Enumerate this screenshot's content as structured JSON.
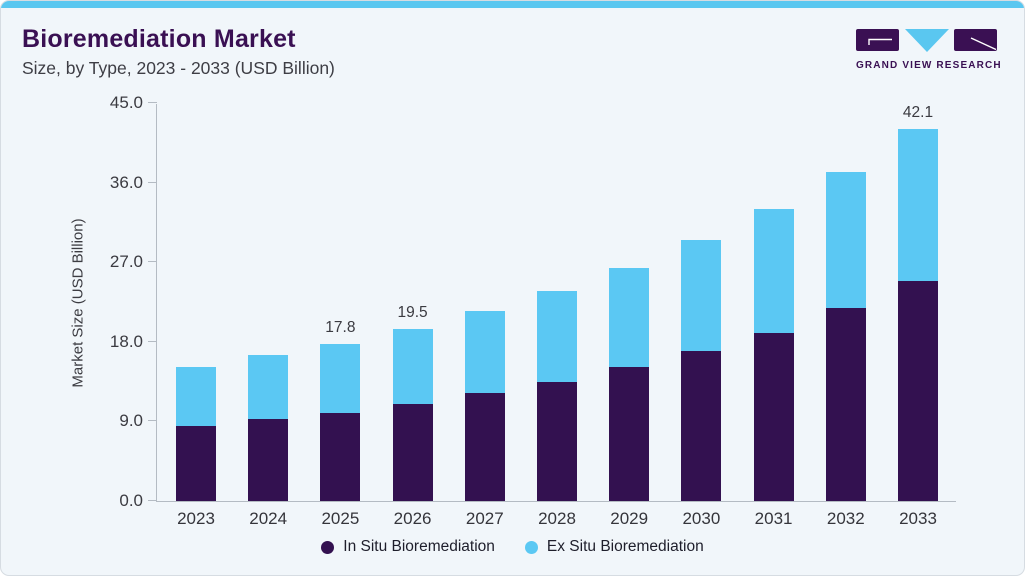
{
  "header": {
    "title": "Bioremediation Market",
    "subtitle": "Size, by Type, 2023 - 2033 (USD Billion)"
  },
  "logo": {
    "text": "GRAND VIEW RESEARCH",
    "brand_purple": "#3a1053",
    "brand_blue": "#5ac7f0"
  },
  "chart_data": {
    "type": "bar",
    "stacked": true,
    "title": "Bioremediation Market Size, by Type, 2023 - 2033 (USD Billion)",
    "categories": [
      "2023",
      "2024",
      "2025",
      "2026",
      "2027",
      "2028",
      "2029",
      "2030",
      "2031",
      "2032",
      "2033"
    ],
    "series": [
      {
        "name": "In Situ Bioremediation",
        "color": "#331150",
        "values": [
          8.5,
          9.3,
          10.0,
          11.0,
          12.2,
          13.5,
          15.1,
          17.0,
          19.0,
          21.8,
          24.9
        ]
      },
      {
        "name": "Ex Situ Bioremediation",
        "color": "#5bc8f3",
        "values": [
          6.7,
          7.2,
          7.8,
          8.5,
          9.3,
          10.3,
          11.3,
          12.5,
          14.0,
          15.4,
          17.2
        ]
      }
    ],
    "totals": [
      15.2,
      16.5,
      17.8,
      19.5,
      21.5,
      23.8,
      26.4,
      29.5,
      33.0,
      37.2,
      42.1
    ],
    "data_labels": [
      "",
      "",
      "17.8",
      "19.5",
      "",
      "",
      "",
      "",
      "",
      "",
      "42.1"
    ],
    "ylabel": "Market Size (USD Billion)",
    "yticks": [
      "0.0",
      "9.0",
      "18.0",
      "27.0",
      "36.0",
      "45.0"
    ],
    "ylim": [
      0,
      45
    ],
    "grid": false,
    "legend_position": "bottom"
  }
}
